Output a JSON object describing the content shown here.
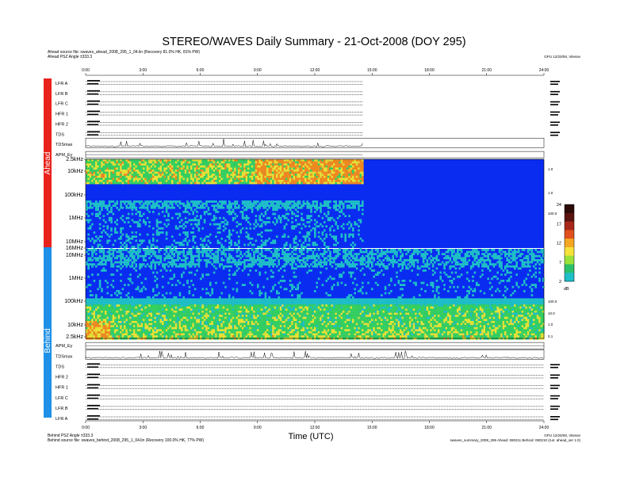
{
  "title": "STEREO/WAVES Daily Summary - 21-Oct-2008 (DOY 295)",
  "ahead_source": "Ahead source file: swaves_ahead_2008_295_1_04.lin (Recovery 81.0% HK, 81% PW)",
  "ahead_pitch": "Ahead PSZ Angle ±333.3",
  "behind_pitch": "Behind PSZ Angle ±333.3",
  "behind_source": "Behind source file: swaves_behind_2008_295_1_04.lin (Recovery 100.0% HK, 77% PW)",
  "gpu_note": "GPU 12/20/08, Vitesse",
  "footer_right": "swaves_summary_2008_295 Ahead: 080211 Behind: 080210 (run: ahead_ver 1.0)",
  "side_ahead": "Ahead",
  "side_behind": "Behind",
  "xlabel": "Time (UTC)",
  "chart_data": {
    "type": "heatmap",
    "x_ticks": [
      "0:00",
      "3:00",
      "6:00",
      "9:00",
      "12:00",
      "15:00",
      "18:00",
      "21:00",
      "24:00"
    ],
    "xlim_hours": [
      0,
      24
    ],
    "ahead_data_end_hours": 14.5,
    "ahead_upper_labels": [
      "LFR A",
      "LFR B",
      "LFR C",
      "HFR 1",
      "HFR 2",
      "TDS",
      "TDSmax",
      "APM_Ey"
    ],
    "behind_lower_labels": [
      "APM_Ey",
      "TDSmax",
      "TDS",
      "HFR 2",
      "HFR 1",
      "LFR C",
      "LFR B",
      "LFR A"
    ],
    "ahead_freq_ticks": [
      "2.5kHz",
      "10kHz",
      "100kHz",
      "1MHz",
      "10MHz"
    ],
    "behind_freq_ticks": [
      "16MHz",
      "10MHz",
      "1MHz",
      "100kHz",
      "10kHz",
      "2.5kHz"
    ],
    "colorbar": {
      "unit": "dB",
      "ticks": [
        "24",
        "17",
        "12",
        "7",
        "2"
      ],
      "colors": [
        "#2b0a08",
        "#5a1410",
        "#a8271a",
        "#e0501c",
        "#f5a623",
        "#f7e23a",
        "#9be13a",
        "#2cc06a",
        "#1fbfc7"
      ]
    },
    "spectrum_palette": {
      "background": "#0a2cf0",
      "low": "#1fbfc7",
      "mid": "#35d060",
      "high": "#e8e235",
      "peak": "#f08a20"
    },
    "right_side_ahead_ticks": [
      "1.0",
      "1.0",
      "100.0"
    ],
    "right_side_behind_ticks": [
      "100.0",
      "10.0",
      "1.0",
      "0.1"
    ]
  }
}
